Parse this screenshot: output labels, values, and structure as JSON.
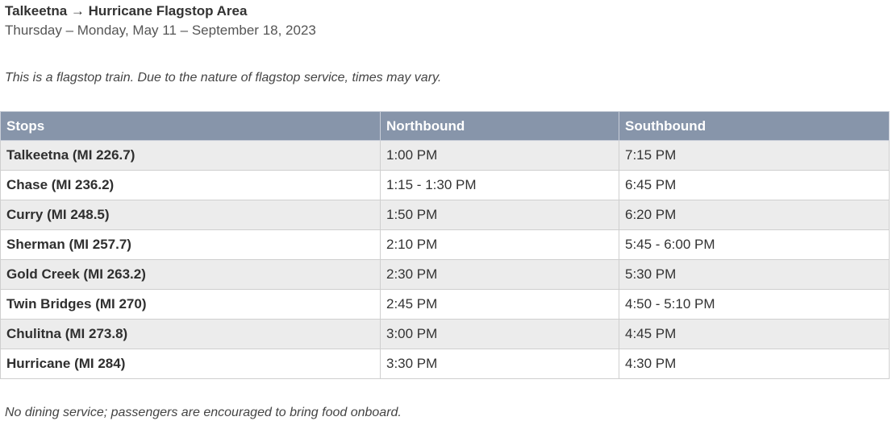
{
  "header": {
    "title": "Talkeetna → Hurricane Flagstop Area",
    "subtitle": "Thursday – Monday, May 11 – September 18, 2023"
  },
  "intro_note": "This is a flagstop train. Due to the nature of flagstop service, times may vary.",
  "table": {
    "columns": [
      "Stops",
      "Northbound",
      "Southbound"
    ],
    "rows": [
      {
        "stop": "Talkeetna (MI 226.7)",
        "northbound": "1:00 PM",
        "southbound": "7:15 PM"
      },
      {
        "stop": "Chase (MI 236.2)",
        "northbound": "1:15 - 1:30 PM",
        "southbound": "6:45 PM"
      },
      {
        "stop": "Curry (MI 248.5)",
        "northbound": "1:50 PM",
        "southbound": "6:20 PM"
      },
      {
        "stop": "Sherman (MI 257.7)",
        "northbound": "2:10 PM",
        "southbound": "5:45 - 6:00 PM"
      },
      {
        "stop": "Gold Creek (MI 263.2)",
        "northbound": "2:30 PM",
        "southbound": "5:30 PM"
      },
      {
        "stop": "Twin Bridges (MI 270)",
        "northbound": "2:45 PM",
        "southbound": "4:50 - 5:10 PM"
      },
      {
        "stop": "Chulitna (MI 273.8)",
        "northbound": "3:00 PM",
        "southbound": "4:45 PM"
      },
      {
        "stop": "Hurricane (MI 284)",
        "northbound": "3:30 PM",
        "southbound": "4:30 PM"
      }
    ]
  },
  "footer_note": "No dining service; passengers are encouraged to bring food onboard.",
  "colors": {
    "header_bg": "#8795aa",
    "row_alt_bg": "#ececec"
  }
}
